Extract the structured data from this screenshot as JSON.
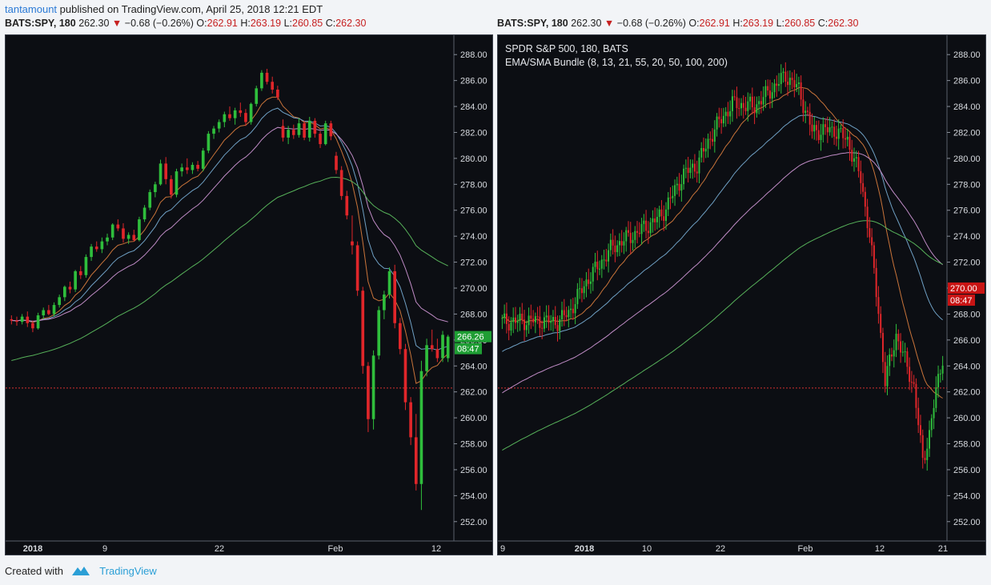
{
  "header": {
    "author": "tantamount",
    "published_text": "published on TradingView.com, April 25, 2018 12:21 EDT"
  },
  "panels": [
    {
      "symbol": "BATS:SPY, 180",
      "last": "262.30",
      "change": "−0.68 (−0.26%)",
      "o_label": "O:",
      "o": "262.91",
      "h_label": "H:",
      "h": "263.19",
      "l_label": "L:",
      "l": "260.85",
      "c_label": "C:",
      "c": "262.30",
      "price_tag": "266.26",
      "time_tag": "08:47"
    },
    {
      "symbol": "BATS:SPY, 180",
      "last": "262.30",
      "change": "−0.68 (−0.26%)",
      "o_label": "O:",
      "o": "262.91",
      "h_label": "H:",
      "h": "263.19",
      "l_label": "L:",
      "l": "260.85",
      "c_label": "C:",
      "c": "262.30",
      "legend_title": "SPDR S&P 500, 180, BATS",
      "legend_study": "EMA/SMA Bundle (8, 13, 21, 55, 20, 50, 100, 200)",
      "price_tag": "270.00",
      "time_tag": "08:47"
    }
  ],
  "footer": {
    "created_with": "Created with",
    "brand": "TradingView"
  },
  "colors": {
    "up": "#2fbe3c",
    "down": "#e0262a",
    "background": "#0c0e13",
    "ema8": "#c9743a",
    "ema13": "#6fa0c4",
    "ema21": "#c08cc6",
    "ema55": "#57b25a",
    "sma20": "#c9743a",
    "sma50": "#6fa0c4",
    "sma100": "#c08cc6",
    "sma200": "#57b25a",
    "dotted_line": "#d23030"
  },
  "chart_data": [
    {
      "type": "candlestick",
      "title": "BATS:SPY, 180",
      "y_ticks": [
        "288.00",
        "286.00",
        "284.00",
        "282.00",
        "280.00",
        "278.00",
        "276.00",
        "274.00",
        "272.00",
        "270.00",
        "268.00",
        "266.00",
        "264.00",
        "262.00",
        "260.00",
        "258.00",
        "256.00",
        "254.00",
        "252.00"
      ],
      "x_ticks": [
        "2018",
        "9",
        "22",
        "Feb",
        "12"
      ],
      "ylim": [
        251,
        289
      ],
      "dotted_level": 262.3,
      "current_price": 266.26,
      "candles": [
        [
          267.6,
          267.9,
          267.2,
          267.5
        ],
        [
          267.5,
          267.8,
          267.1,
          267.4
        ],
        [
          267.4,
          268.0,
          267.2,
          267.8
        ],
        [
          267.8,
          268.2,
          267.0,
          267.3
        ],
        [
          267.3,
          267.5,
          266.6,
          266.9
        ],
        [
          266.9,
          268.1,
          266.8,
          267.9
        ],
        [
          267.9,
          268.5,
          267.6,
          268.3
        ],
        [
          268.3,
          268.7,
          267.9,
          268.0
        ],
        [
          268.0,
          268.9,
          267.8,
          268.7
        ],
        [
          268.7,
          269.5,
          268.5,
          269.3
        ],
        [
          269.3,
          270.2,
          269.0,
          270.1
        ],
        [
          270.1,
          270.5,
          269.6,
          269.9
        ],
        [
          269.9,
          271.4,
          269.7,
          271.3
        ],
        [
          271.3,
          271.7,
          270.7,
          271.0
        ],
        [
          271.0,
          272.6,
          270.8,
          272.4
        ],
        [
          272.4,
          273.4,
          272.1,
          273.2
        ],
        [
          273.2,
          273.6,
          272.8,
          273.0
        ],
        [
          273.0,
          273.9,
          272.7,
          273.6
        ],
        [
          273.6,
          274.2,
          273.3,
          273.9
        ],
        [
          273.9,
          275.0,
          273.7,
          274.9
        ],
        [
          274.9,
          275.3,
          274.4,
          274.6
        ],
        [
          274.6,
          275.0,
          273.5,
          273.8
        ],
        [
          273.8,
          274.3,
          273.4,
          274.1
        ],
        [
          274.1,
          274.5,
          273.6,
          273.7
        ],
        [
          273.7,
          275.5,
          273.6,
          275.3
        ],
        [
          275.3,
          276.4,
          275.1,
          276.2
        ],
        [
          276.2,
          277.6,
          276.0,
          277.4
        ],
        [
          277.4,
          278.2,
          277.0,
          278.0
        ],
        [
          278.0,
          279.9,
          277.9,
          279.6
        ],
        [
          279.6,
          280.1,
          278.0,
          278.4
        ],
        [
          278.4,
          278.7,
          276.9,
          277.2
        ],
        [
          277.2,
          279.2,
          277.0,
          279.0
        ],
        [
          279.0,
          279.6,
          278.6,
          279.3
        ],
        [
          279.3,
          280.0,
          278.8,
          279.1
        ],
        [
          279.1,
          279.7,
          278.8,
          279.5
        ],
        [
          279.5,
          279.8,
          279.0,
          279.2
        ],
        [
          279.2,
          280.8,
          279.0,
          280.6
        ],
        [
          280.6,
          282.1,
          280.4,
          281.9
        ],
        [
          281.9,
          282.5,
          281.5,
          282.3
        ],
        [
          282.3,
          283.0,
          282.0,
          282.8
        ],
        [
          282.8,
          283.6,
          282.4,
          283.4
        ],
        [
          283.4,
          284.0,
          282.9,
          283.1
        ],
        [
          283.1,
          283.9,
          282.6,
          283.7
        ],
        [
          283.7,
          284.3,
          283.2,
          283.5
        ],
        [
          283.5,
          283.8,
          282.5,
          282.8
        ],
        [
          282.8,
          284.3,
          282.6,
          284.2
        ],
        [
          284.2,
          285.6,
          284.0,
          285.4
        ],
        [
          285.4,
          286.8,
          285.2,
          286.6
        ],
        [
          286.6,
          286.9,
          285.7,
          285.9
        ],
        [
          285.9,
          286.3,
          285.0,
          285.3
        ],
        [
          285.3,
          285.6,
          284.5,
          284.7
        ],
        [
          282.5,
          283.0,
          281.3,
          281.6
        ],
        [
          281.6,
          282.5,
          281.1,
          282.2
        ],
        [
          282.2,
          282.6,
          281.5,
          281.8
        ],
        [
          281.8,
          283.1,
          281.6,
          282.7
        ],
        [
          282.7,
          282.9,
          281.4,
          281.6
        ],
        [
          281.6,
          283.2,
          281.3,
          282.9
        ],
        [
          282.9,
          283.1,
          281.6,
          281.9
        ],
        [
          281.9,
          282.1,
          280.8,
          281.1
        ],
        [
          281.1,
          282.9,
          281.0,
          282.7
        ],
        [
          282.7,
          282.9,
          281.4,
          281.7
        ],
        [
          280.2,
          280.5,
          278.8,
          279.1
        ],
        [
          279.1,
          279.4,
          276.8,
          277.1
        ],
        [
          277.1,
          277.5,
          275.3,
          275.6
        ],
        [
          273.6,
          275.6,
          272.6,
          273.3
        ],
        [
          273.3,
          273.6,
          269.4,
          269.8
        ],
        [
          269.8,
          270.1,
          263.4,
          264.0
        ],
        [
          264.0,
          264.3,
          258.9,
          259.9
        ],
        [
          259.9,
          265.2,
          259.1,
          264.8
        ],
        [
          264.8,
          268.6,
          264.5,
          268.3
        ],
        [
          268.3,
          269.8,
          267.6,
          269.5
        ],
        [
          269.5,
          271.6,
          269.2,
          271.3
        ],
        [
          271.3,
          271.8,
          266.9,
          267.3
        ],
        [
          267.3,
          267.7,
          264.9,
          265.3
        ],
        [
          265.3,
          265.7,
          260.6,
          261.2
        ],
        [
          261.2,
          261.6,
          257.9,
          258.5
        ],
        [
          258.5,
          260.3,
          254.4,
          254.9
        ],
        [
          254.9,
          264.4,
          252.9,
          263.6
        ],
        [
          263.6,
          266.1,
          263.2,
          265.6
        ],
        [
          265.6,
          266.8,
          265.1,
          265.3
        ],
        [
          265.3,
          266.1,
          264.3,
          264.6
        ],
        [
          264.6,
          266.7,
          264.3,
          266.4
        ],
        [
          264.6,
          266.4,
          264.3,
          266.26
        ]
      ]
    },
    {
      "type": "candlestick",
      "title": "SPDR S&P 500, 180, BATS",
      "y_ticks": [
        "288.00",
        "286.00",
        "284.00",
        "282.00",
        "280.00",
        "278.00",
        "276.00",
        "274.00",
        "272.00",
        "270.00",
        "268.00",
        "266.00",
        "264.00",
        "262.00",
        "260.00",
        "258.00",
        "256.00",
        "254.00",
        "252.00"
      ],
      "x_ticks": [
        "9",
        "2018",
        "10",
        "22",
        "Feb",
        "12",
        "21"
      ],
      "ylim": [
        251,
        289
      ],
      "dotted_level": 262.3,
      "current_price": 270.0
    }
  ]
}
